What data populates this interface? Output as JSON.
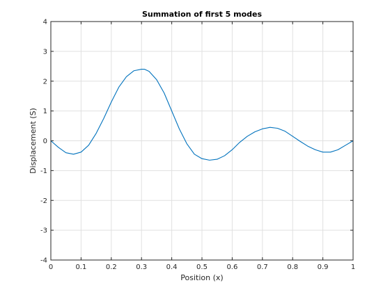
{
  "chart_data": {
    "type": "line",
    "title": "Summation of first 5 modes",
    "xlabel": "Position (x)",
    "ylabel": "Displacement (S)",
    "xlim": [
      0,
      1
    ],
    "ylim": [
      -4,
      4
    ],
    "xticks": [
      "0",
      "0.1",
      "0.2",
      "0.3",
      "0.4",
      "0.5",
      "0.6",
      "0.7",
      "0.8",
      "0.9",
      "1"
    ],
    "yticks": [
      "-4",
      "-3",
      "-2",
      "-1",
      "0",
      "1",
      "2",
      "3",
      "4"
    ],
    "grid": true,
    "series": [
      {
        "color": "#0072bd",
        "x": [
          0,
          0.025,
          0.05,
          0.075,
          0.1,
          0.125,
          0.15,
          0.175,
          0.2,
          0.225,
          0.25,
          0.275,
          0.3,
          0.31,
          0.325,
          0.35,
          0.375,
          0.4,
          0.425,
          0.45,
          0.475,
          0.5,
          0.525,
          0.55,
          0.575,
          0.6,
          0.625,
          0.65,
          0.675,
          0.7,
          0.725,
          0.75,
          0.775,
          0.8,
          0.825,
          0.85,
          0.875,
          0.9,
          0.925,
          0.95,
          0.975,
          1
        ],
        "y": [
          0,
          -0.22,
          -0.4,
          -0.45,
          -0.38,
          -0.15,
          0.25,
          0.75,
          1.3,
          1.8,
          2.15,
          2.35,
          2.4,
          2.4,
          2.33,
          2.05,
          1.6,
          1.0,
          0.4,
          -0.1,
          -0.45,
          -0.6,
          -0.65,
          -0.62,
          -0.5,
          -0.3,
          -0.05,
          0.15,
          0.3,
          0.4,
          0.45,
          0.42,
          0.32,
          0.15,
          -0.02,
          -0.18,
          -0.3,
          -0.38,
          -0.38,
          -0.3,
          -0.15,
          0
        ]
      }
    ]
  }
}
